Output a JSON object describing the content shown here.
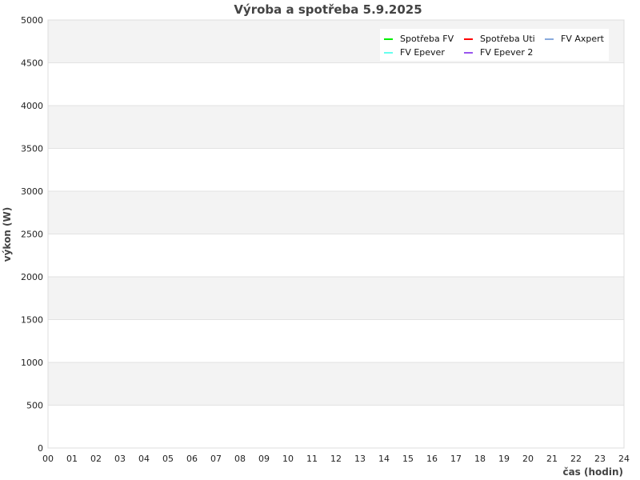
{
  "chart_data": {
    "type": "line",
    "title": "Výroba a spotřeba 5.9.2025",
    "xlabel": "čas (hodin)",
    "ylabel": "výkon (W)",
    "xlim": [
      0,
      24
    ],
    "ylim": [
      0,
      5000
    ],
    "x_ticks": [
      "00",
      "01",
      "02",
      "03",
      "04",
      "05",
      "06",
      "07",
      "08",
      "09",
      "10",
      "11",
      "12",
      "13",
      "14",
      "15",
      "16",
      "17",
      "18",
      "19",
      "20",
      "21",
      "22",
      "23",
      "24"
    ],
    "y_ticks": [
      "0",
      "500",
      "1000",
      "1500",
      "2000",
      "2500",
      "3000",
      "3500",
      "4000",
      "4500",
      "5000"
    ],
    "grid": true,
    "legend_position": "top-right",
    "series": [
      {
        "name": "Spotřeba FV",
        "color": "#00ee00",
        "values": []
      },
      {
        "name": "Spotřeba Uti",
        "color": "#ff0000",
        "values": []
      },
      {
        "name": "FV Axpert",
        "color": "#88aadd",
        "values": []
      },
      {
        "name": "FV Epever",
        "color": "#66ffee",
        "values": []
      },
      {
        "name": "FV Epever 2",
        "color": "#9955ee",
        "values": []
      }
    ]
  }
}
